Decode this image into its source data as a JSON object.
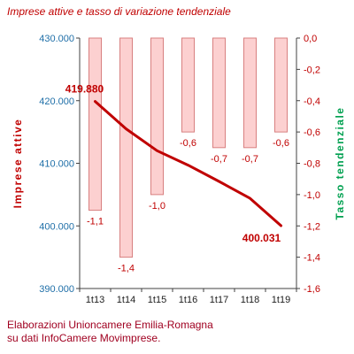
{
  "chart_data": {
    "type": "bar+line",
    "title": "Imprese attive e tasso di variazione tendenziale",
    "categories": [
      "1t13",
      "1t14",
      "1t15",
      "1t16",
      "1t17",
      "1t18",
      "1t19"
    ],
    "bar_series": {
      "name": "Tasso tendenziale",
      "values": [
        -1.1,
        -1.4,
        -1.0,
        -0.6,
        -0.7,
        -0.7,
        -0.6
      ],
      "labels": [
        "-1,1",
        "-1,4",
        "-1,0",
        "-0,6",
        "-0,7",
        "-0,7",
        "-0,6"
      ],
      "axis": "right",
      "fill": "#fcd0d0",
      "stroke": "#d88080"
    },
    "line_series": {
      "name": "Imprese attive",
      "values": [
        419880,
        415500,
        412000,
        409700,
        407100,
        404400,
        400031
      ],
      "end_labels": [
        "419.880",
        "400.031"
      ],
      "axis": "left",
      "color": "#c00000"
    },
    "left_axis": {
      "label": "Imprese attive",
      "range": [
        390000,
        430000
      ],
      "ticks": [
        430000,
        420000,
        410000,
        400000,
        390000
      ],
      "tick_labels": [
        "430.000",
        "420.000",
        "410.000",
        "400.000",
        "390.000"
      ],
      "color": "#1f6fa8",
      "label_color": "#c00000"
    },
    "right_axis": {
      "label": "Tasso tendenziale",
      "range": [
        -1.6,
        0.0
      ],
      "ticks": [
        0,
        -0.2,
        -0.4,
        -0.6,
        -0.8,
        -1.0,
        -1.2,
        -1.4,
        -1.6
      ],
      "tick_labels": [
        "0,0",
        "-0,2",
        "-0,4",
        "-0,6",
        "-0,8",
        "-1,0",
        "-1,2",
        "-1,4",
        "-1,6"
      ],
      "color": "#c00000",
      "label_color": "#00a050"
    },
    "grid": false
  },
  "notes": {
    "line1": "Elaborazioni Unioncamere Emilia-Romagna",
    "line2": "su dati InfoCamere Movimprese."
  }
}
